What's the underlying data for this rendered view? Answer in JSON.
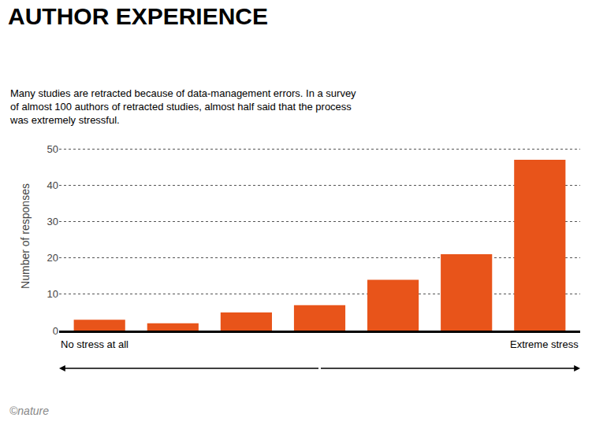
{
  "chart_data": {
    "type": "bar",
    "title": "AUTHOR EXPERIENCE",
    "subtitle": "Many studies are retracted because of data-management errors. In a survey\nof almost 100 authors of retracted studies, almost half said that the process\nwas extremely stressful.",
    "categories": [
      null,
      null,
      null,
      null,
      null,
      null,
      null
    ],
    "values": [
      3,
      2,
      5,
      7,
      14,
      21,
      47
    ],
    "color": "#E8541A",
    "ylabel": "Number of responses",
    "ylim": [
      0,
      52
    ],
    "yticks": [
      0,
      10,
      20,
      30,
      40,
      50
    ],
    "grid": true,
    "annotations": [
      "No stress at all",
      "Extreme stress",
      "©nature"
    ]
  }
}
